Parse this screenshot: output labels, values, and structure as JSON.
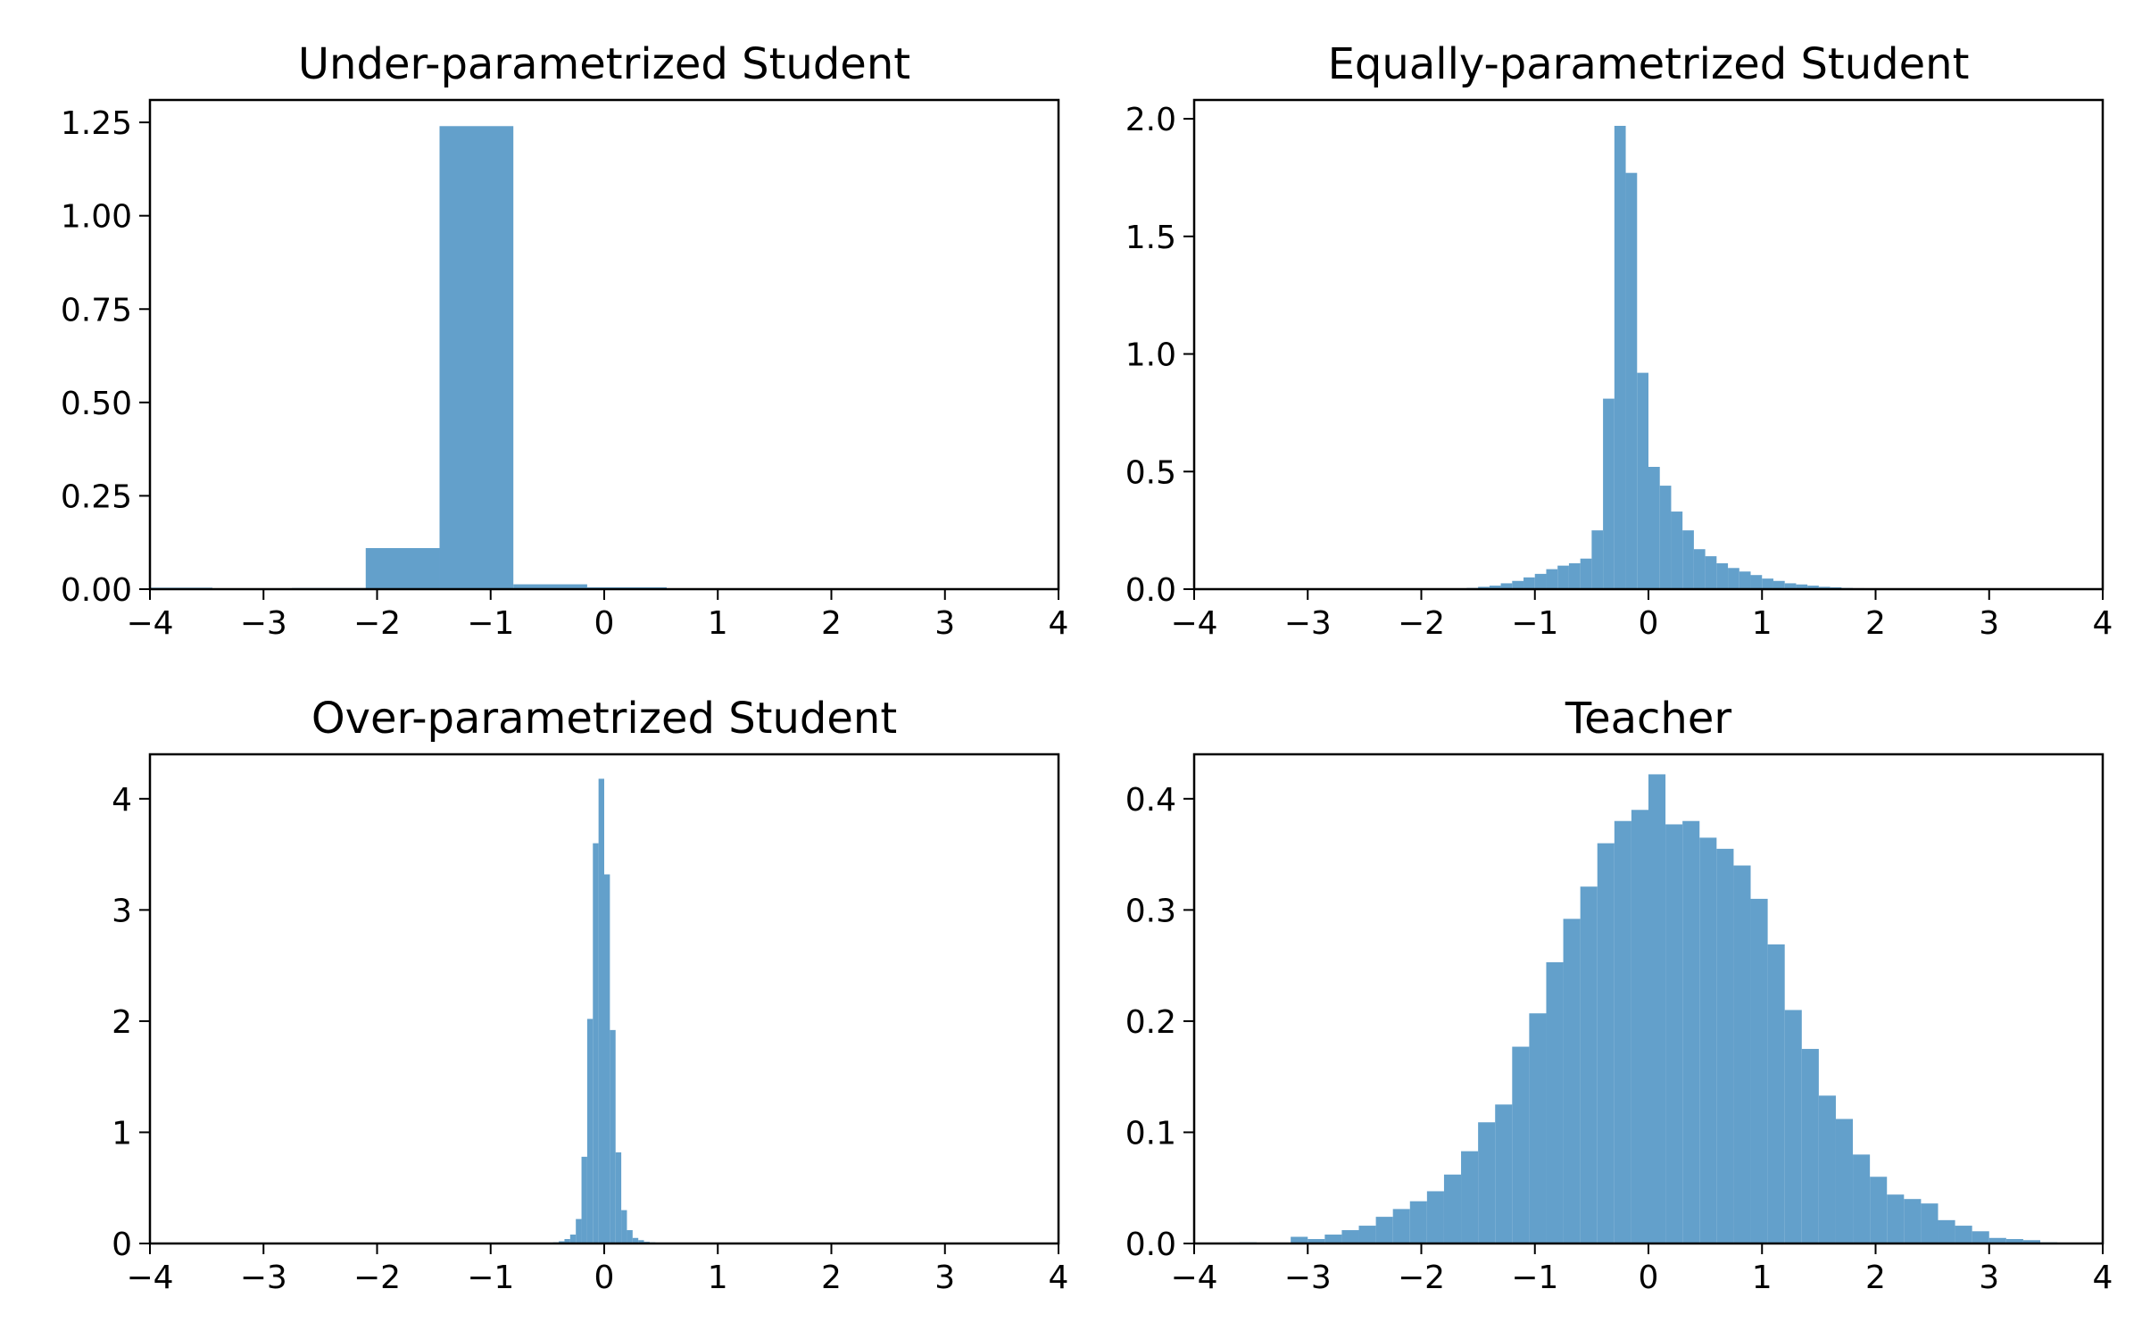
{
  "chart_data": [
    {
      "type": "bar",
      "title": "Under-parametrized Student",
      "xlabel": "",
      "ylabel": "",
      "xlim": [
        -4,
        4
      ],
      "ylim": [
        0,
        1.31
      ],
      "xticks": [
        "−4",
        "−3",
        "−2",
        "−1",
        "0",
        "1",
        "2",
        "3",
        "4"
      ],
      "xtick_values": [
        -4,
        -3,
        -2,
        -1,
        0,
        1,
        2,
        3,
        4
      ],
      "yticks": [
        "0.00",
        "0.25",
        "0.50",
        "0.75",
        "1.00",
        "1.25"
      ],
      "ytick_values": [
        0,
        0.25,
        0.5,
        0.75,
        1.0,
        1.25
      ],
      "color": "#63a0cb",
      "bins": [
        {
          "x0": -4.0,
          "x1": -3.45,
          "value": 0.004
        },
        {
          "x0": -3.45,
          "x1": -2.75,
          "value": 0.0
        },
        {
          "x0": -2.75,
          "x1": -2.1,
          "value": 0.003
        },
        {
          "x0": -2.1,
          "x1": -1.45,
          "value": 0.11
        },
        {
          "x0": -1.45,
          "x1": -0.8,
          "value": 1.24
        },
        {
          "x0": -0.8,
          "x1": -0.15,
          "value": 0.013
        },
        {
          "x0": -0.15,
          "x1": 0.55,
          "value": 0.005
        },
        {
          "x0": 0.55,
          "x1": 1.85,
          "value": 0.002
        },
        {
          "x0": 1.85,
          "x1": 3.2,
          "value": 0.0
        },
        {
          "x0": 3.2,
          "x1": 3.85,
          "value": 0.002
        }
      ]
    },
    {
      "type": "bar",
      "title": "Equally-parametrized Student",
      "xlabel": "",
      "ylabel": "",
      "xlim": [
        -4,
        4
      ],
      "ylim": [
        0,
        2.08
      ],
      "xticks": [
        "−4",
        "−3",
        "−2",
        "−1",
        "0",
        "1",
        "2",
        "3",
        "4"
      ],
      "xtick_values": [
        -4,
        -3,
        -2,
        -1,
        0,
        1,
        2,
        3,
        4
      ],
      "yticks": [
        "0.0",
        "0.5",
        "1.0",
        "1.5",
        "2.0"
      ],
      "ytick_values": [
        0,
        0.5,
        1.0,
        1.5,
        2.0
      ],
      "color": "#63a0cb",
      "bins": [
        {
          "x0": -1.6,
          "x1": -1.5,
          "value": 0.005
        },
        {
          "x0": -1.5,
          "x1": -1.4,
          "value": 0.01
        },
        {
          "x0": -1.4,
          "x1": -1.3,
          "value": 0.015
        },
        {
          "x0": -1.3,
          "x1": -1.2,
          "value": 0.025
        },
        {
          "x0": -1.2,
          "x1": -1.1,
          "value": 0.035
        },
        {
          "x0": -1.1,
          "x1": -1.0,
          "value": 0.05
        },
        {
          "x0": -1.0,
          "x1": -0.9,
          "value": 0.065
        },
        {
          "x0": -0.9,
          "x1": -0.8,
          "value": 0.085
        },
        {
          "x0": -0.8,
          "x1": -0.7,
          "value": 0.1
        },
        {
          "x0": -0.7,
          "x1": -0.6,
          "value": 0.11
        },
        {
          "x0": -0.6,
          "x1": -0.5,
          "value": 0.13
        },
        {
          "x0": -0.5,
          "x1": -0.4,
          "value": 0.25
        },
        {
          "x0": -0.4,
          "x1": -0.3,
          "value": 0.81
        },
        {
          "x0": -0.3,
          "x1": -0.2,
          "value": 1.97
        },
        {
          "x0": -0.2,
          "x1": -0.1,
          "value": 1.77
        },
        {
          "x0": -0.1,
          "x1": 0.0,
          "value": 0.92
        },
        {
          "x0": 0.0,
          "x1": 0.1,
          "value": 0.52
        },
        {
          "x0": 0.1,
          "x1": 0.2,
          "value": 0.44
        },
        {
          "x0": 0.2,
          "x1": 0.3,
          "value": 0.33
        },
        {
          "x0": 0.3,
          "x1": 0.4,
          "value": 0.25
        },
        {
          "x0": 0.4,
          "x1": 0.5,
          "value": 0.17
        },
        {
          "x0": 0.5,
          "x1": 0.6,
          "value": 0.14
        },
        {
          "x0": 0.6,
          "x1": 0.7,
          "value": 0.11
        },
        {
          "x0": 0.7,
          "x1": 0.8,
          "value": 0.09
        },
        {
          "x0": 0.8,
          "x1": 0.9,
          "value": 0.075
        },
        {
          "x0": 0.9,
          "x1": 1.0,
          "value": 0.06
        },
        {
          "x0": 1.0,
          "x1": 1.1,
          "value": 0.045
        },
        {
          "x0": 1.1,
          "x1": 1.2,
          "value": 0.035
        },
        {
          "x0": 1.2,
          "x1": 1.3,
          "value": 0.025
        },
        {
          "x0": 1.3,
          "x1": 1.4,
          "value": 0.02
        },
        {
          "x0": 1.4,
          "x1": 1.5,
          "value": 0.015
        },
        {
          "x0": 1.5,
          "x1": 1.6,
          "value": 0.01
        },
        {
          "x0": 1.6,
          "x1": 1.7,
          "value": 0.008
        },
        {
          "x0": 1.7,
          "x1": 1.8,
          "value": 0.005
        },
        {
          "x0": 1.8,
          "x1": 1.9,
          "value": 0.004
        },
        {
          "x0": 1.9,
          "x1": 2.0,
          "value": 0.003
        }
      ]
    },
    {
      "type": "bar",
      "title": "Over-parametrized Student",
      "xlabel": "",
      "ylabel": "",
      "xlim": [
        -4,
        4
      ],
      "ylim": [
        0,
        4.4
      ],
      "xticks": [
        "−4",
        "−3",
        "−2",
        "−1",
        "0",
        "1",
        "2",
        "3",
        "4"
      ],
      "xtick_values": [
        -4,
        -3,
        -2,
        -1,
        0,
        1,
        2,
        3,
        4
      ],
      "yticks": [
        "0",
        "1",
        "2",
        "3",
        "4"
      ],
      "ytick_values": [
        0,
        1,
        2,
        3,
        4
      ],
      "color": "#63a0cb",
      "bins": [
        {
          "x0": -0.45,
          "x1": -0.4,
          "value": 0.01
        },
        {
          "x0": -0.4,
          "x1": -0.35,
          "value": 0.02
        },
        {
          "x0": -0.35,
          "x1": -0.3,
          "value": 0.04
        },
        {
          "x0": -0.3,
          "x1": -0.25,
          "value": 0.08
        },
        {
          "x0": -0.25,
          "x1": -0.2,
          "value": 0.22
        },
        {
          "x0": -0.2,
          "x1": -0.15,
          "value": 0.78
        },
        {
          "x0": -0.15,
          "x1": -0.1,
          "value": 2.02
        },
        {
          "x0": -0.1,
          "x1": -0.05,
          "value": 3.6
        },
        {
          "x0": -0.05,
          "x1": 0.0,
          "value": 4.18
        },
        {
          "x0": 0.0,
          "x1": 0.05,
          "value": 3.32
        },
        {
          "x0": 0.05,
          "x1": 0.1,
          "value": 1.92
        },
        {
          "x0": 0.1,
          "x1": 0.15,
          "value": 0.82
        },
        {
          "x0": 0.15,
          "x1": 0.2,
          "value": 0.3
        },
        {
          "x0": 0.2,
          "x1": 0.25,
          "value": 0.12
        },
        {
          "x0": 0.25,
          "x1": 0.3,
          "value": 0.05
        },
        {
          "x0": 0.3,
          "x1": 0.35,
          "value": 0.03
        },
        {
          "x0": 0.35,
          "x1": 0.4,
          "value": 0.015
        },
        {
          "x0": 0.4,
          "x1": 0.45,
          "value": 0.01
        }
      ]
    },
    {
      "type": "bar",
      "title": "Teacher",
      "xlabel": "",
      "ylabel": "",
      "xlim": [
        -4,
        4
      ],
      "ylim": [
        0,
        0.44
      ],
      "xticks": [
        "−4",
        "−3",
        "−2",
        "−1",
        "0",
        "1",
        "2",
        "3",
        "4"
      ],
      "xtick_values": [
        -4,
        -3,
        -2,
        -1,
        0,
        1,
        2,
        3,
        4
      ],
      "yticks": [
        "0.0",
        "0.1",
        "0.2",
        "0.3",
        "0.4"
      ],
      "ytick_values": [
        0,
        0.1,
        0.2,
        0.3,
        0.4
      ],
      "color": "#63a0cb",
      "bins": [
        {
          "x0": -3.6,
          "x1": -3.45,
          "value": 0.001
        },
        {
          "x0": -3.45,
          "x1": -3.3,
          "value": 0.0
        },
        {
          "x0": -3.3,
          "x1": -3.15,
          "value": 0.0
        },
        {
          "x0": -3.15,
          "x1": -3.0,
          "value": 0.006
        },
        {
          "x0": -3.0,
          "x1": -2.85,
          "value": 0.004
        },
        {
          "x0": -2.85,
          "x1": -2.7,
          "value": 0.008
        },
        {
          "x0": -2.7,
          "x1": -2.55,
          "value": 0.012
        },
        {
          "x0": -2.55,
          "x1": -2.4,
          "value": 0.016
        },
        {
          "x0": -2.4,
          "x1": -2.25,
          "value": 0.024
        },
        {
          "x0": -2.25,
          "x1": -2.1,
          "value": 0.031
        },
        {
          "x0": -2.1,
          "x1": -1.95,
          "value": 0.038
        },
        {
          "x0": -1.95,
          "x1": -1.8,
          "value": 0.047
        },
        {
          "x0": -1.8,
          "x1": -1.65,
          "value": 0.062
        },
        {
          "x0": -1.65,
          "x1": -1.5,
          "value": 0.083
        },
        {
          "x0": -1.5,
          "x1": -1.35,
          "value": 0.109
        },
        {
          "x0": -1.35,
          "x1": -1.2,
          "value": 0.125
        },
        {
          "x0": -1.2,
          "x1": -1.05,
          "value": 0.177
        },
        {
          "x0": -1.05,
          "x1": -0.9,
          "value": 0.207
        },
        {
          "x0": -0.9,
          "x1": -0.75,
          "value": 0.253
        },
        {
          "x0": -0.75,
          "x1": -0.6,
          "value": 0.292
        },
        {
          "x0": -0.6,
          "x1": -0.45,
          "value": 0.321
        },
        {
          "x0": -0.45,
          "x1": -0.3,
          "value": 0.36
        },
        {
          "x0": -0.3,
          "x1": -0.15,
          "value": 0.38
        },
        {
          "x0": -0.15,
          "x1": 0.0,
          "value": 0.39
        },
        {
          "x0": 0.0,
          "x1": 0.15,
          "value": 0.422
        },
        {
          "x0": 0.15,
          "x1": 0.3,
          "value": 0.377
        },
        {
          "x0": 0.3,
          "x1": 0.45,
          "value": 0.38
        },
        {
          "x0": 0.45,
          "x1": 0.6,
          "value": 0.365
        },
        {
          "x0": 0.6,
          "x1": 0.75,
          "value": 0.355
        },
        {
          "x0": 0.75,
          "x1": 0.9,
          "value": 0.34
        },
        {
          "x0": 0.9,
          "x1": 1.05,
          "value": 0.31
        },
        {
          "x0": 1.05,
          "x1": 1.2,
          "value": 0.269
        },
        {
          "x0": 1.2,
          "x1": 1.35,
          "value": 0.21
        },
        {
          "x0": 1.35,
          "x1": 1.5,
          "value": 0.175
        },
        {
          "x0": 1.5,
          "x1": 1.65,
          "value": 0.133
        },
        {
          "x0": 1.65,
          "x1": 1.8,
          "value": 0.112
        },
        {
          "x0": 1.8,
          "x1": 1.95,
          "value": 0.08
        },
        {
          "x0": 1.95,
          "x1": 2.1,
          "value": 0.06
        },
        {
          "x0": 2.1,
          "x1": 2.25,
          "value": 0.044
        },
        {
          "x0": 2.25,
          "x1": 2.4,
          "value": 0.04
        },
        {
          "x0": 2.4,
          "x1": 2.55,
          "value": 0.036
        },
        {
          "x0": 2.55,
          "x1": 2.7,
          "value": 0.021
        },
        {
          "x0": 2.7,
          "x1": 2.85,
          "value": 0.016
        },
        {
          "x0": 2.85,
          "x1": 3.0,
          "value": 0.011
        },
        {
          "x0": 3.0,
          "x1": 3.15,
          "value": 0.005
        },
        {
          "x0": 3.15,
          "x1": 3.3,
          "value": 0.004
        },
        {
          "x0": 3.3,
          "x1": 3.45,
          "value": 0.003
        },
        {
          "x0": 3.45,
          "x1": 3.6,
          "value": 0.001
        }
      ]
    }
  ]
}
